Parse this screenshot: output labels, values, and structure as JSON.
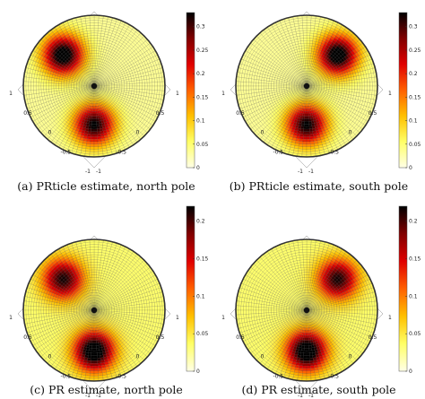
{
  "figure": {
    "panels": [
      {
        "caption": "(a) PRticle estimate, north pole"
      },
      {
        "caption": "(b) PRticle estimate, south pole"
      },
      {
        "caption": "(c) PR estimate, north pole"
      },
      {
        "caption": "(d) PR estimate, south pole"
      }
    ]
  },
  "chart_data": [
    {
      "type": "heatmap",
      "caption": "(a) PRticle estimate, north pole",
      "colormap": [
        "#ffffe6",
        "#ffff66",
        "#ffc000",
        "#ff6000",
        "#e00000",
        "#800000",
        "#000000"
      ],
      "colorbar_range": [
        0,
        0.33
      ],
      "colorbar_ticks": [
        "0",
        "0.05",
        "0.1",
        "0.15",
        "0.2",
        "0.25",
        "0.3"
      ],
      "axis_ticks_left": [
        "1",
        "0.5",
        "0",
        "-0.5",
        "-1"
      ],
      "axis_ticks_right": [
        "-1",
        "-0.5",
        "0",
        "0.5",
        "1"
      ],
      "hotspots": [
        {
          "azimuth_deg": 135,
          "radius": 0.62,
          "peak": 0.33
        },
        {
          "azimuth_deg": 270,
          "radius": 0.55,
          "peak": 0.3
        }
      ]
    },
    {
      "type": "heatmap",
      "caption": "(b) PRticle estimate, south pole",
      "colormap": [
        "#ffffe6",
        "#ffff66",
        "#ffc000",
        "#ff6000",
        "#e00000",
        "#800000",
        "#000000"
      ],
      "colorbar_range": [
        0,
        0.33
      ],
      "colorbar_ticks": [
        "0",
        "0.05",
        "0.1",
        "0.15",
        "0.2",
        "0.25",
        "0.3"
      ],
      "axis_ticks_left": [
        "1",
        "0.5",
        "0",
        "-0.5",
        "-1"
      ],
      "axis_ticks_right": [
        "-1",
        "-0.5",
        "0",
        "0.5",
        "1"
      ],
      "hotspots": [
        {
          "azimuth_deg": 45,
          "radius": 0.62,
          "peak": 0.33
        },
        {
          "azimuth_deg": 270,
          "radius": 0.55,
          "peak": 0.3
        }
      ]
    },
    {
      "type": "heatmap",
      "caption": "(c) PR estimate, north pole",
      "colormap": [
        "#ffffe6",
        "#ffff66",
        "#ffc000",
        "#ff6000",
        "#e00000",
        "#800000",
        "#000000"
      ],
      "colorbar_range": [
        0,
        0.22
      ],
      "colorbar_ticks": [
        "0",
        "0.05",
        "0.1",
        "0.15",
        "0.2"
      ],
      "axis_ticks_left": [
        "1",
        "0.5",
        "0",
        "-0.5",
        "-1"
      ],
      "axis_ticks_right": [
        "-1",
        "-0.5",
        "0",
        "0.5",
        "1"
      ],
      "hotspots": [
        {
          "azimuth_deg": 135,
          "radius": 0.62,
          "peak": 0.18
        },
        {
          "azimuth_deg": 270,
          "radius": 0.58,
          "peak": 0.22
        }
      ]
    },
    {
      "type": "heatmap",
      "caption": "(d) PR estimate, south pole",
      "colormap": [
        "#ffffe6",
        "#ffff66",
        "#ffc000",
        "#ff6000",
        "#e00000",
        "#800000",
        "#000000"
      ],
      "colorbar_range": [
        0,
        0.22
      ],
      "colorbar_ticks": [
        "0",
        "0.05",
        "0.1",
        "0.15",
        "0.2"
      ],
      "axis_ticks_left": [
        "1",
        "0.5",
        "0",
        "-0.5",
        "-1"
      ],
      "axis_ticks_right": [
        "-1",
        "-0.5",
        "0",
        "0.5",
        "1"
      ],
      "hotspots": [
        {
          "azimuth_deg": 45,
          "radius": 0.62,
          "peak": 0.18
        },
        {
          "azimuth_deg": 270,
          "radius": 0.58,
          "peak": 0.22
        }
      ]
    }
  ]
}
